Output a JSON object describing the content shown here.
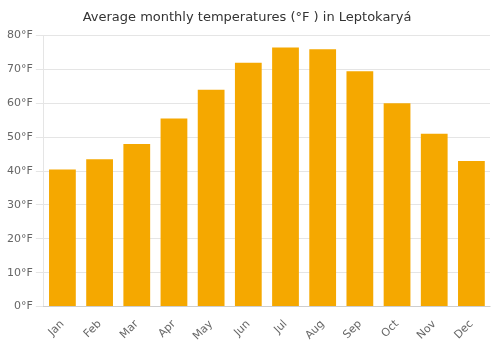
{
  "chart_data": {
    "type": "bar",
    "title": "Average monthly temperatures (°F ) in Leptokaryá",
    "categories": [
      "Jan",
      "Feb",
      "Mar",
      "Apr",
      "May",
      "Jun",
      "Jul",
      "Aug",
      "Sep",
      "Oct",
      "Nov",
      "Dec"
    ],
    "values": [
      40.5,
      43.5,
      48,
      55.5,
      64,
      72,
      76.5,
      76,
      69.5,
      60,
      51,
      43
    ],
    "color": "#F5A800",
    "ylim": [
      0,
      80
    ],
    "yticks": [
      {
        "value": 0,
        "label": "0°F"
      },
      {
        "value": 10,
        "label": "10°F"
      },
      {
        "value": 20,
        "label": "20°F"
      },
      {
        "value": 30,
        "label": "30°F"
      },
      {
        "value": 40,
        "label": "40°F"
      },
      {
        "value": 50,
        "label": "50°F"
      },
      {
        "value": 60,
        "label": "60°F"
      },
      {
        "value": 70,
        "label": "70°F"
      },
      {
        "value": 80,
        "label": "80°F"
      }
    ],
    "grid": true
  }
}
